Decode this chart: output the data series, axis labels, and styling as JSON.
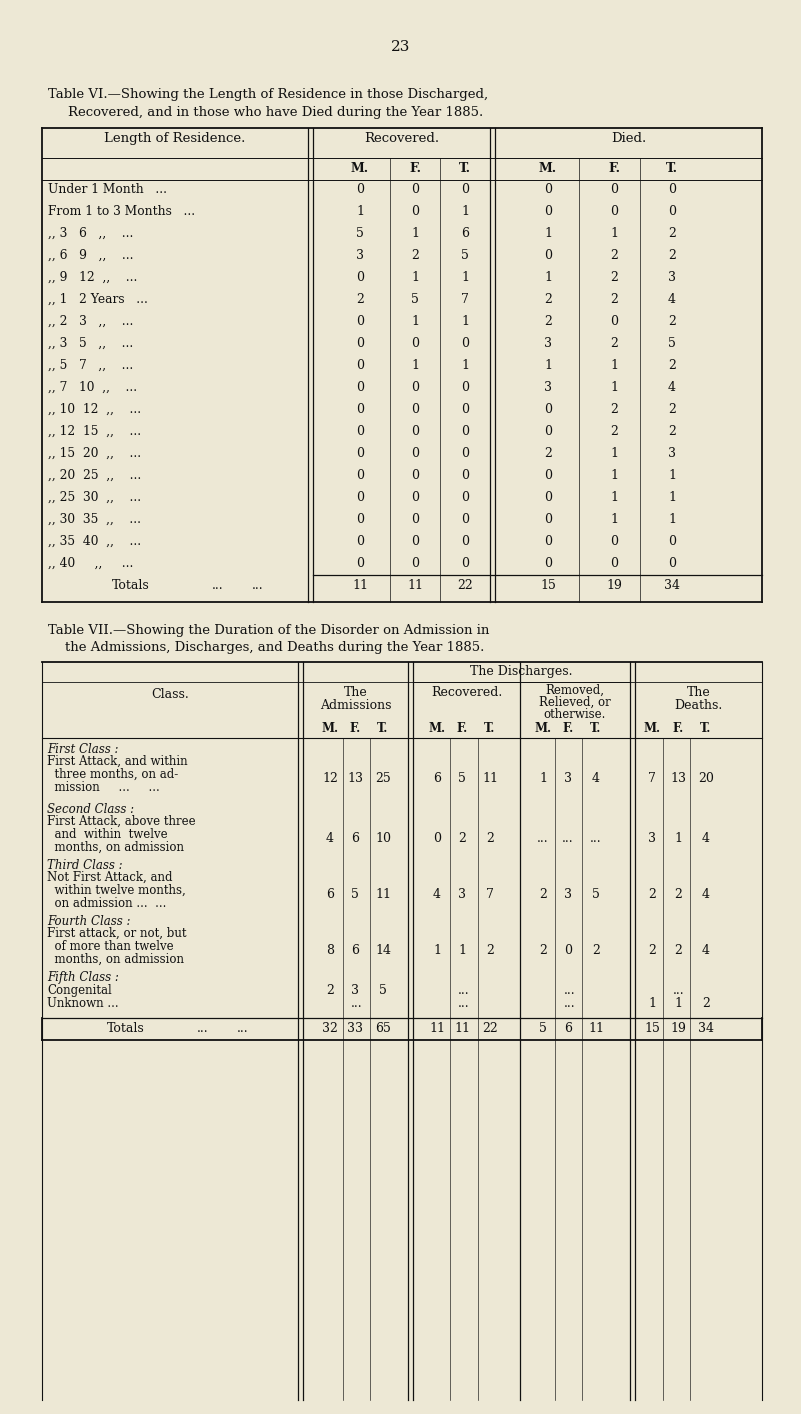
{
  "bg_color": "#ede8d5",
  "text_color": "#111111",
  "page_num": "23",
  "t6_title1": "Table VI.—Showing the Length of Residence in those Discharged,",
  "t6_title2": "Recovered, and in those who have Died during the Year 1885.",
  "t6_rows": [
    [
      "Under 1 Month   ...",
      "0",
      "0",
      "0",
      "0",
      "0",
      "0"
    ],
    [
      "From 1 to 3 Months   ...",
      "1",
      "0",
      "1",
      "0",
      "0",
      "0"
    ],
    [
      ",, 3   6   ,,    ...",
      "5",
      "1",
      "6",
      "1",
      "1",
      "2"
    ],
    [
      ",, 6   9   ,,    ...",
      "3",
      "2",
      "5",
      "0",
      "2",
      "2"
    ],
    [
      ",, 9   12  ,,    ...",
      "0",
      "1",
      "1",
      "1",
      "2",
      "3"
    ],
    [
      ",, 1   2 Years   ...",
      "2",
      "5",
      "7",
      "2",
      "2",
      "4"
    ],
    [
      ",, 2   3   ,,    ...",
      "0",
      "1",
      "1",
      "2",
      "0",
      "2"
    ],
    [
      ",, 3   5   ,,    ...",
      "0",
      "0",
      "0",
      "3",
      "2",
      "5"
    ],
    [
      ",, 5   7   ,,    ...",
      "0",
      "1",
      "1",
      "1",
      "1",
      "2"
    ],
    [
      ",, 7   10  ,,    ...",
      "0",
      "0",
      "0",
      "3",
      "1",
      "4"
    ],
    [
      ",, 10  12  ,,    ...",
      "0",
      "0",
      "0",
      "0",
      "2",
      "2"
    ],
    [
      ",, 12  15  ,,    ...",
      "0",
      "0",
      "0",
      "0",
      "2",
      "2"
    ],
    [
      ",, 15  20  ,,    ...",
      "0",
      "0",
      "0",
      "2",
      "1",
      "3"
    ],
    [
      ",, 20  25  ,,    ...",
      "0",
      "0",
      "0",
      "0",
      "1",
      "1"
    ],
    [
      ",, 25  30  ,,    ...",
      "0",
      "0",
      "0",
      "0",
      "1",
      "1"
    ],
    [
      ",, 30  35  ,,    ...",
      "0",
      "0",
      "0",
      "0",
      "1",
      "1"
    ],
    [
      ",, 35  40  ,,    ...",
      "0",
      "0",
      "0",
      "0",
      "0",
      "0"
    ],
    [
      ",, 40     ,,     ...",
      "0",
      "0",
      "0",
      "0",
      "0",
      "0"
    ]
  ],
  "t6_totals": [
    "11",
    "11",
    "22",
    "15",
    "19",
    "34"
  ],
  "t7_title1": "Table VII.—Showing the Duration of the Disorder on Admission in",
  "t7_title2": "the Admissions, Discharges, and Deaths during the Year 1885.",
  "t7_classes": [
    {
      "italic": "First Class :",
      "lines": [
        "First Attack, and within",
        "  three months, on ad-",
        "  mission     ...     ..."
      ],
      "adm": [
        "12",
        "13",
        "25"
      ],
      "rec": [
        "6",
        "5",
        "11"
      ],
      "rem": [
        "1",
        "3",
        "4"
      ],
      "dth": [
        "7",
        "13",
        "20"
      ]
    },
    {
      "italic": "Second Class :",
      "lines": [
        "First Attack, above three",
        "  and  within  twelve",
        "  months, on admission"
      ],
      "adm": [
        "4",
        "6",
        "10"
      ],
      "rec": [
        "0",
        "2",
        "2"
      ],
      "rem": [
        "...",
        "...",
        "..."
      ],
      "dth": [
        "3",
        "1",
        "4"
      ]
    },
    {
      "italic": "Third Class :",
      "lines": [
        "Not First Attack, and",
        "  within twelve months,",
        "  on admission ...  ..."
      ],
      "adm": [
        "6",
        "5",
        "11"
      ],
      "rec": [
        "4",
        "3",
        "7"
      ],
      "rem": [
        "2",
        "3",
        "5"
      ],
      "dth": [
        "2",
        "2",
        "4"
      ]
    },
    {
      "italic": "Fourth Class :",
      "lines": [
        "First attack, or not, but",
        "  of more than twelve",
        "  months, on admission"
      ],
      "adm": [
        "8",
        "6",
        "14"
      ],
      "rec": [
        "1",
        "1",
        "2"
      ],
      "rem": [
        "2",
        "0",
        "2"
      ],
      "dth": [
        "2",
        "2",
        "4"
      ]
    }
  ],
  "t7_fifth_italic": "Fifth Class :",
  "t7_congenital_adm": [
    "2",
    "3",
    "5"
  ],
  "t7_unknown_dth": [
    "1",
    "1",
    "2"
  ],
  "t7_totals_adm": [
    "32",
    "33",
    "65"
  ],
  "t7_totals_rec": [
    "11",
    "11",
    "22"
  ],
  "t7_totals_rem": [
    "5",
    "6",
    "11"
  ],
  "t7_totals_dth": [
    "15",
    "19",
    "34"
  ]
}
